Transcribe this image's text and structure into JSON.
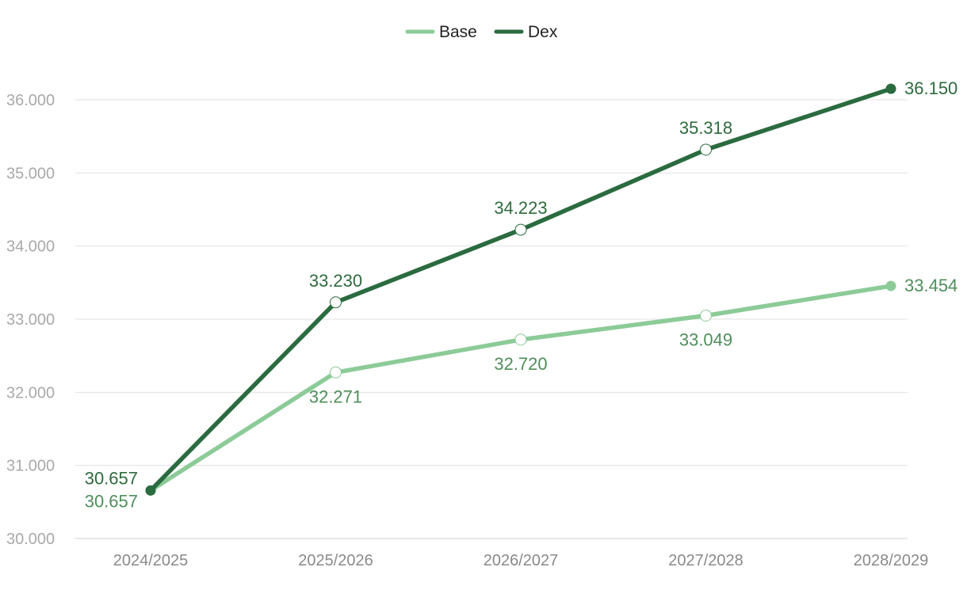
{
  "chart_data": {
    "type": "line",
    "title": "",
    "xlabel": "",
    "ylabel": "",
    "categories": [
      "2024/2025",
      "2025/2026",
      "2026/2027",
      "2027/2028",
      "2028/2029"
    ],
    "ylim": [
      30000,
      36000
    ],
    "yticks": [
      30000,
      31000,
      32000,
      33000,
      34000,
      35000,
      36000
    ],
    "ytick_labels": [
      "30.000",
      "31.000",
      "32.000",
      "33.000",
      "34.000",
      "35.000",
      "36.000"
    ],
    "grid": true,
    "legend_position": "top-center",
    "series": [
      {
        "name": "Base",
        "color": "#8ccb98",
        "label_color": "#4f8f5b",
        "values": [
          30657,
          32271,
          32720,
          33049,
          33454
        ],
        "value_labels": [
          "30.657",
          "32.271",
          "32.720",
          "33.049",
          "33.454"
        ]
      },
      {
        "name": "Dex",
        "color": "#2a6b3f",
        "label_color": "#2e6b3d",
        "values": [
          30657,
          33230,
          34223,
          35318,
          36150
        ],
        "value_labels": [
          "30.657",
          "33.230",
          "34.223",
          "35.318",
          "36.150"
        ]
      }
    ]
  }
}
